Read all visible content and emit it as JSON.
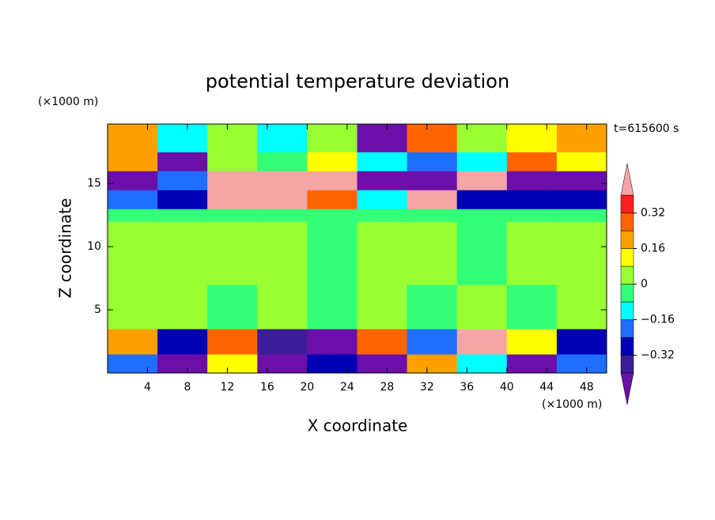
{
  "chart_data": {
    "type": "contour",
    "title": "potential temperature deviation",
    "x_label": "X coordinate",
    "y_label": "Z coordinate",
    "x_unit": "(×1000 m)",
    "y_unit": "(×1000 m)",
    "annotation": "t=615600 s",
    "xlim": [
      0,
      50
    ],
    "ylim": [
      0,
      19.7
    ],
    "xticks": [
      4,
      8,
      12,
      16,
      20,
      24,
      28,
      32,
      36,
      40,
      44,
      48
    ],
    "yticks": [
      5,
      10,
      15
    ],
    "x_edges": [
      0,
      5,
      10,
      15,
      20,
      25,
      30,
      35,
      40,
      45,
      50
    ],
    "z_edges": [
      0,
      1.5,
      3.5,
      7,
      12,
      13,
      14.5,
      16,
      17.5,
      19.7
    ],
    "values": [
      [
        -0.2,
        -0.45,
        0.1,
        -0.45,
        -0.3,
        -0.45,
        0.2,
        -0.1,
        -0.45,
        -0.2
      ],
      [
        0.2,
        -0.3,
        0.25,
        -0.35,
        -0.45,
        0.3,
        -0.2,
        0.45,
        0.1,
        -0.3
      ],
      [
        0.04,
        0.04,
        -0.04,
        0.04,
        -0.04,
        0.04,
        -0.04,
        0.04,
        -0.04,
        0.04
      ],
      [
        0.04,
        0.04,
        0.04,
        0.04,
        -0.04,
        0.04,
        0.04,
        -0.04,
        0.04,
        0.04
      ],
      [
        -0.04,
        -0.04,
        -0.04,
        -0.04,
        -0.04,
        -0.04,
        -0.04,
        -0.04,
        -0.04,
        -0.04
      ],
      [
        -0.2,
        -0.3,
        0.45,
        0.45,
        0.3,
        -0.12,
        0.45,
        -0.3,
        -0.3,
        -0.3
      ],
      [
        -0.45,
        -0.2,
        0.45,
        0.45,
        0.45,
        -0.45,
        -0.45,
        0.45,
        -0.45,
        -0.45
      ],
      [
        0.2,
        -0.45,
        0.05,
        -0.04,
        0.1,
        -0.12,
        -0.2,
        -0.12,
        0.3,
        0.1
      ],
      [
        0.2,
        -0.1,
        0.04,
        -0.1,
        0.04,
        -0.45,
        0.3,
        0.04,
        0.1,
        0.2
      ]
    ],
    "levels": [
      -0.4,
      -0.32,
      -0.24,
      -0.16,
      -0.08,
      0,
      0.08,
      0.16,
      0.24,
      0.32,
      0.4
    ],
    "colors": [
      "#6b0fa8",
      "#3c1e9a",
      "#0000b4",
      "#1e6eff",
      "#00ffff",
      "#33ff77",
      "#99ff33",
      "#ffff00",
      "#ffa000",
      "#ff6400",
      "#ff2020",
      "#f4a6a6"
    ],
    "colorbar_ticks": [
      {
        "value": -0.32,
        "label": "−0.32"
      },
      {
        "value": -0.16,
        "label": "−0.16"
      },
      0,
      0.16,
      0.32
    ]
  }
}
